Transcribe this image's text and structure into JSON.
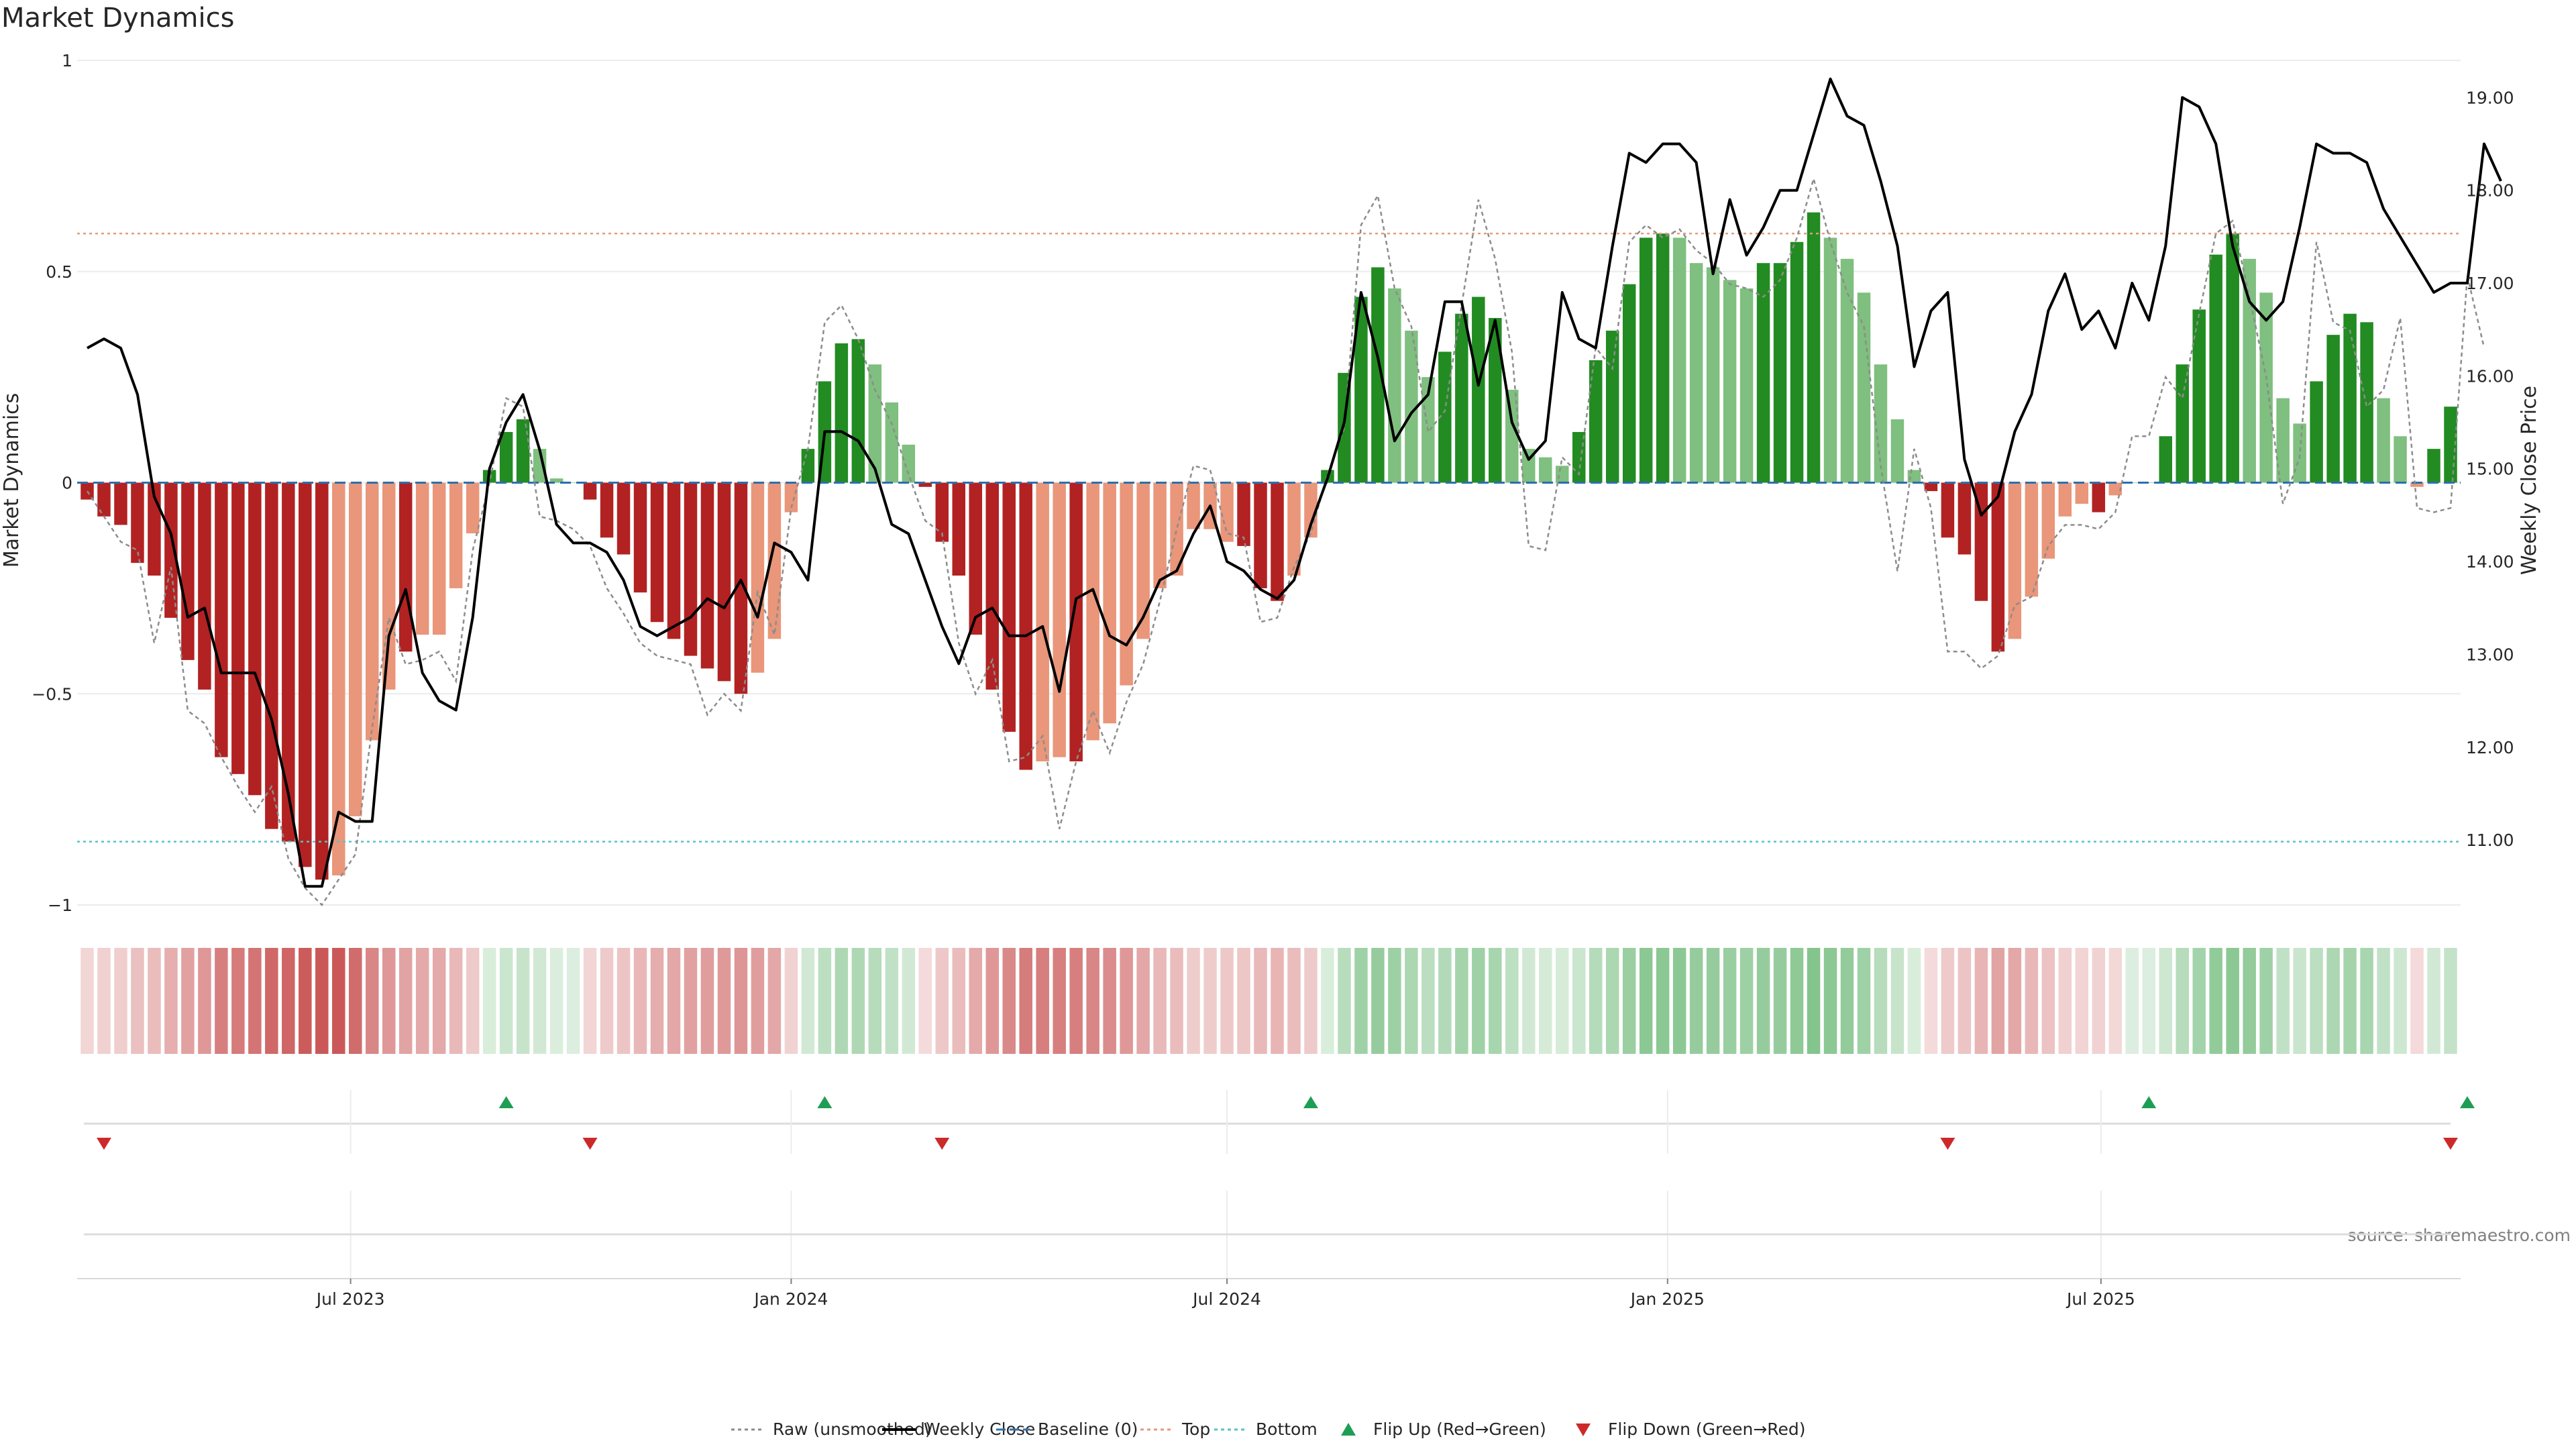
{
  "chart_data": {
    "type": "bar",
    "title": "Market Dynamics",
    "ylabel_left": "Market Dynamics",
    "ylabel_right": "Weekly Close Price",
    "ylim_left": [
      -1,
      1
    ],
    "ylim_right": [
      10.3,
      19.4
    ],
    "yticks_left": [
      "1",
      "0.5",
      "0",
      "−0.5",
      "−1"
    ],
    "yticks_right": [
      "19.00",
      "18.00",
      "17.00",
      "16.00",
      "15.00",
      "14.00",
      "13.00",
      "12.00",
      "11.00"
    ],
    "x_start": "2023-03-13",
    "x_interval": "weekly",
    "xticks": [
      "Jul 2023",
      "Jan 2024",
      "Jul 2024",
      "Jan 2025",
      "Jul 2025"
    ],
    "reference_lines": {
      "baseline": 0,
      "top": 0.59,
      "bottom": -0.85
    },
    "series": [
      {
        "name": "Market Dynamics",
        "values": [
          -0.04,
          -0.08,
          -0.1,
          -0.19,
          -0.22,
          -0.32,
          -0.42,
          -0.49,
          -0.65,
          -0.69,
          -0.74,
          -0.82,
          -0.85,
          -0.91,
          -0.94,
          -0.93,
          -0.79,
          -0.61,
          -0.49,
          -0.4,
          -0.36,
          -0.36,
          -0.25,
          -0.12,
          0.03,
          0.12,
          0.15,
          0.08,
          0.01,
          0.0,
          -0.04,
          -0.13,
          -0.17,
          -0.26,
          -0.33,
          -0.37,
          -0.41,
          -0.44,
          -0.47,
          -0.5,
          -0.45,
          -0.37,
          -0.07,
          0.08,
          0.24,
          0.33,
          0.34,
          0.28,
          0.19,
          0.09,
          -0.01,
          -0.14,
          -0.22,
          -0.36,
          -0.49,
          -0.59,
          -0.68,
          -0.66,
          -0.65,
          -0.66,
          -0.61,
          -0.57,
          -0.48,
          -0.37,
          -0.25,
          -0.22,
          -0.11,
          -0.11,
          -0.14,
          -0.15,
          -0.25,
          -0.28,
          -0.22,
          -0.13,
          0.03,
          0.26,
          0.44,
          0.51,
          0.46,
          0.36,
          0.25,
          0.31,
          0.4,
          0.44,
          0.39,
          0.22,
          0.08,
          0.06,
          0.04,
          0.12,
          0.29,
          0.36,
          0.47,
          0.58,
          0.59,
          0.58,
          0.52,
          0.51,
          0.48,
          0.46,
          0.52,
          0.52,
          0.57,
          0.64,
          0.58,
          0.53,
          0.45,
          0.28,
          0.15,
          0.03,
          -0.02,
          -0.13,
          -0.17,
          -0.28,
          -0.4,
          -0.37,
          -0.27,
          -0.18,
          -0.08,
          -0.05,
          -0.07,
          -0.03,
          0.0,
          0.0,
          0.11,
          0.28,
          0.41,
          0.54,
          0.59,
          0.53,
          0.45,
          0.2,
          0.14,
          0.24,
          0.35,
          0.4,
          0.38,
          0.2,
          0.11,
          -0.01,
          0.08,
          0.18
        ],
        "trend": [
          "d",
          "d",
          "d",
          "d",
          "d",
          "d",
          "d",
          "d",
          "d",
          "d",
          "d",
          "d",
          "d",
          "d",
          "d",
          "l",
          "l",
          "l",
          "l",
          "d",
          "l",
          "l",
          "l",
          "l",
          "d",
          "d",
          "d",
          "l",
          "l",
          "l",
          "d",
          "d",
          "d",
          "d",
          "d",
          "d",
          "d",
          "d",
          "d",
          "d",
          "l",
          "l",
          "l",
          "d",
          "d",
          "d",
          "d",
          "l",
          "l",
          "l",
          "d",
          "d",
          "d",
          "d",
          "d",
          "d",
          "d",
          "l",
          "l",
          "d",
          "l",
          "l",
          "l",
          "l",
          "l",
          "l",
          "l",
          "l",
          "l",
          "d",
          "d",
          "d",
          "l",
          "l",
          "d",
          "d",
          "d",
          "d",
          "l",
          "l",
          "l",
          "d",
          "d",
          "d",
          "d",
          "l",
          "l",
          "l",
          "l",
          "d",
          "d",
          "d",
          "d",
          "d",
          "d",
          "l",
          "l",
          "l",
          "l",
          "l",
          "d",
          "d",
          "d",
          "d",
          "l",
          "l",
          "l",
          "l",
          "l",
          "l",
          "d",
          "d",
          "d",
          "d",
          "d",
          "l",
          "l",
          "l",
          "l",
          "l",
          "d",
          "l",
          "l",
          "l",
          "d",
          "d",
          "d",
          "d",
          "d",
          "l",
          "l",
          "l",
          "l",
          "d",
          "d",
          "d",
          "d",
          "l",
          "l",
          "l",
          "d",
          "d"
        ]
      },
      {
        "name": "Raw (unsmoothed)",
        "values": [
          -0.02,
          -0.08,
          -0.14,
          -0.16,
          -0.38,
          -0.2,
          -0.54,
          -0.57,
          -0.65,
          -0.72,
          -0.78,
          -0.72,
          -0.89,
          -0.96,
          -1.0,
          -0.94,
          -0.88,
          -0.58,
          -0.32,
          -0.43,
          -0.42,
          -0.4,
          -0.47,
          -0.16,
          0.0,
          0.2,
          0.18,
          -0.08,
          -0.09,
          -0.11,
          -0.15,
          -0.25,
          -0.31,
          -0.38,
          -0.41,
          -0.42,
          -0.43,
          -0.55,
          -0.5,
          -0.54,
          -0.26,
          -0.36,
          -0.06,
          0.08,
          0.38,
          0.42,
          0.34,
          0.22,
          0.14,
          0.02,
          -0.09,
          -0.12,
          -0.38,
          -0.5,
          -0.42,
          -0.66,
          -0.65,
          -0.6,
          -0.82,
          -0.66,
          -0.54,
          -0.64,
          -0.52,
          -0.43,
          -0.28,
          -0.11,
          0.04,
          0.03,
          -0.12,
          -0.13,
          -0.33,
          -0.32,
          -0.2,
          -0.12,
          0.02,
          0.13,
          0.61,
          0.68,
          0.46,
          0.37,
          0.12,
          0.17,
          0.42,
          0.67,
          0.53,
          0.31,
          -0.15,
          -0.16,
          0.06,
          0.02,
          0.32,
          0.27,
          0.57,
          0.61,
          0.58,
          0.6,
          0.55,
          0.52,
          0.47,
          0.46,
          0.44,
          0.48,
          0.58,
          0.72,
          0.57,
          0.45,
          0.37,
          0.04,
          -0.21,
          0.08,
          -0.06,
          -0.4,
          -0.4,
          -0.44,
          -0.41,
          -0.29,
          -0.27,
          -0.15,
          -0.1,
          -0.1,
          -0.11,
          -0.07,
          0.11,
          0.11,
          0.25,
          0.2,
          0.4,
          0.59,
          0.62,
          0.44,
          0.25,
          -0.05,
          0.06,
          0.57,
          0.38,
          0.36,
          0.18,
          0.22,
          0.39,
          -0.06,
          -0.07,
          -0.06,
          0.49,
          0.32
        ]
      },
      {
        "name": "Weekly Close",
        "axis": "right",
        "values": [
          16.3,
          16.4,
          16.3,
          15.8,
          14.7,
          14.3,
          13.4,
          13.5,
          12.8,
          12.8,
          12.8,
          12.3,
          11.5,
          10.5,
          10.5,
          11.3,
          11.2,
          11.2,
          13.2,
          13.7,
          12.8,
          12.5,
          12.4,
          13.4,
          15.0,
          15.5,
          15.8,
          15.2,
          14.4,
          14.2,
          14.2,
          14.1,
          13.8,
          13.3,
          13.2,
          13.3,
          13.4,
          13.6,
          13.5,
          13.8,
          13.4,
          14.2,
          14.1,
          13.8,
          15.4,
          15.4,
          15.3,
          15.0,
          14.4,
          14.3,
          13.8,
          13.3,
          12.9,
          13.4,
          13.5,
          13.2,
          13.2,
          13.3,
          12.6,
          13.6,
          13.7,
          13.2,
          13.1,
          13.4,
          13.8,
          13.9,
          14.3,
          14.6,
          14.0,
          13.9,
          13.7,
          13.6,
          13.8,
          14.4,
          14.9,
          15.5,
          16.9,
          16.2,
          15.3,
          15.6,
          15.8,
          16.8,
          16.8,
          15.9,
          16.6,
          15.5,
          15.1,
          15.3,
          16.9,
          16.4,
          16.3,
          17.4,
          18.4,
          18.3,
          18.5,
          18.5,
          18.3,
          17.1,
          17.9,
          17.3,
          17.6,
          18.0,
          18.0,
          18.6,
          19.2,
          18.8,
          18.7,
          18.1,
          17.4,
          16.1,
          16.7,
          16.9,
          15.1,
          14.5,
          14.7,
          15.4,
          15.8,
          16.7,
          17.1,
          16.5,
          16.7,
          16.3,
          17.0,
          16.6,
          17.4,
          19.0,
          18.9,
          18.5,
          17.4,
          16.8,
          16.6,
          16.8,
          17.6,
          18.5,
          18.4,
          18.4,
          18.3,
          17.8,
          17.5,
          17.2,
          16.9,
          17.0,
          17.0,
          18.5,
          18.1
        ]
      }
    ],
    "flips_up_week_index": [
      25,
      44,
      73,
      123,
      142
    ],
    "flips_down_week_index": [
      1,
      30,
      51,
      111,
      141
    ],
    "legend": [
      {
        "label": "Raw (unsmoothed)",
        "marker": "dotted-line",
        "color": "#8c8c8c"
      },
      {
        "label": "Weekly Close",
        "marker": "solid-line",
        "color": "#000000"
      },
      {
        "label": "Baseline (0)",
        "marker": "dashed-line",
        "color": "#2d6fad"
      },
      {
        "label": "Top",
        "marker": "dotted-line",
        "color": "#e59a7d"
      },
      {
        "label": "Bottom",
        "marker": "dotted-line",
        "color": "#56c3c9"
      },
      {
        "label": "Flip Up (Red→Green)",
        "marker": "triangle-up",
        "color": "#1e9e55"
      },
      {
        "label": "Flip Down (Green→Red)",
        "marker": "triangle-down",
        "color": "#cc2a2a"
      }
    ],
    "legend_position": "bottom-center",
    "source": "source: sharemaestro.com",
    "grid": true
  },
  "colors": {
    "dark_green": "#228b22",
    "light_green": "#7fbf7f",
    "dark_red": "#b22222",
    "light_red": "#e9967a",
    "strip_green": "#3fa34d",
    "strip_red": "#c23b3b",
    "top_line": "#e59a7d",
    "bottom_line": "#56c3c9",
    "baseline": "#2d6fad",
    "raw": "#8c8c8c",
    "close": "#000000",
    "flip_up": "#1e9e55",
    "flip_down": "#cc2a2a"
  }
}
